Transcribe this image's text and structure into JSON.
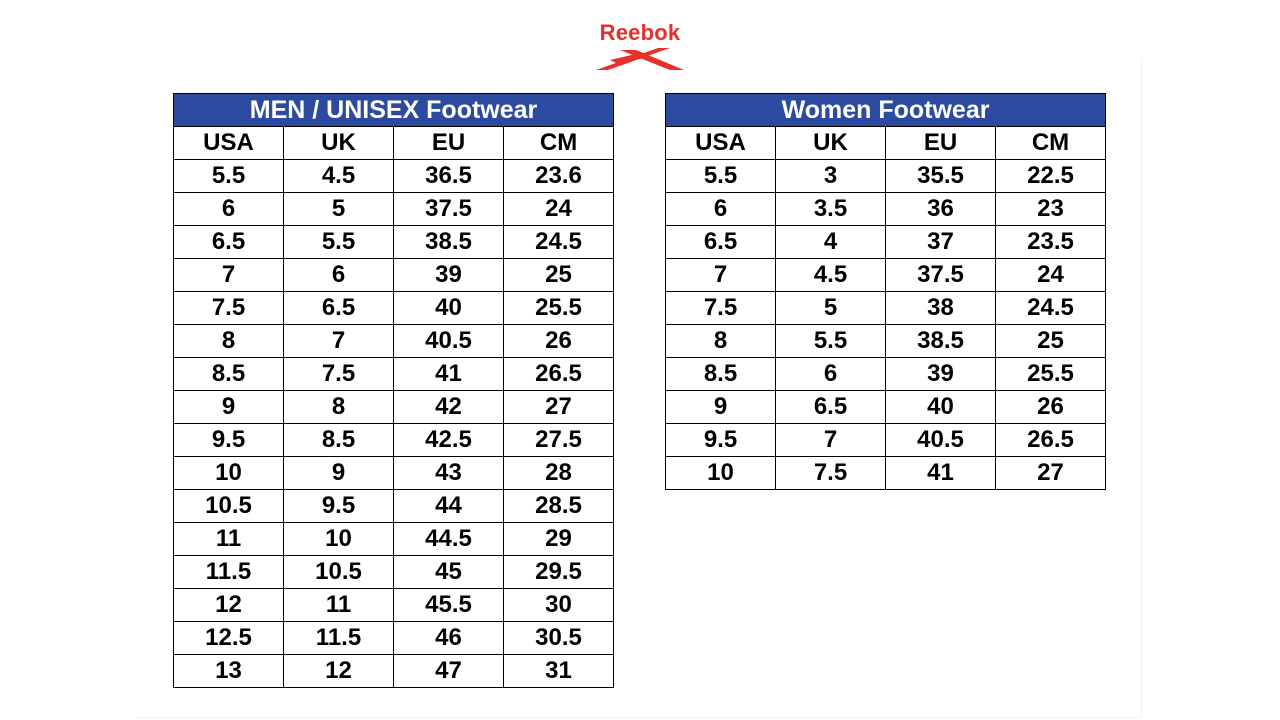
{
  "brand": {
    "name": "Reebok",
    "color": "#e8302a"
  },
  "men_table": {
    "title": "MEN / UNISEX Footwear",
    "header_color": "#2c4aa0",
    "columns": [
      "USA",
      "UK",
      "EU",
      "CM"
    ],
    "rows": [
      [
        "5.5",
        "4.5",
        "36.5",
        "23.6"
      ],
      [
        "6",
        "5",
        "37.5",
        "24"
      ],
      [
        "6.5",
        "5.5",
        "38.5",
        "24.5"
      ],
      [
        "7",
        "6",
        "39",
        "25"
      ],
      [
        "7.5",
        "6.5",
        "40",
        "25.5"
      ],
      [
        "8",
        "7",
        "40.5",
        "26"
      ],
      [
        "8.5",
        "7.5",
        "41",
        "26.5"
      ],
      [
        "9",
        "8",
        "42",
        "27"
      ],
      [
        "9.5",
        "8.5",
        "42.5",
        "27.5"
      ],
      [
        "10",
        "9",
        "43",
        "28"
      ],
      [
        "10.5",
        "9.5",
        "44",
        "28.5"
      ],
      [
        "11",
        "10",
        "44.5",
        "29"
      ],
      [
        "11.5",
        "10.5",
        "45",
        "29.5"
      ],
      [
        "12",
        "11",
        "45.5",
        "30"
      ],
      [
        "12.5",
        "11.5",
        "46",
        "30.5"
      ],
      [
        "13",
        "12",
        "47",
        "31"
      ]
    ]
  },
  "women_table": {
    "title": "Women Footwear",
    "header_color": "#2c4aa0",
    "columns": [
      "USA",
      "UK",
      "EU",
      "CM"
    ],
    "rows": [
      [
        "5.5",
        "3",
        "35.5",
        "22.5"
      ],
      [
        "6",
        "3.5",
        "36",
        "23"
      ],
      [
        "6.5",
        "4",
        "37",
        "23.5"
      ],
      [
        "7",
        "4.5",
        "37.5",
        "24"
      ],
      [
        "7.5",
        "5",
        "38",
        "24.5"
      ],
      [
        "8",
        "5.5",
        "38.5",
        "25"
      ],
      [
        "8.5",
        "6",
        "39",
        "25.5"
      ],
      [
        "9",
        "6.5",
        "40",
        "26"
      ],
      [
        "9.5",
        "7",
        "40.5",
        "26.5"
      ],
      [
        "10",
        "7.5",
        "41",
        "27"
      ]
    ]
  }
}
